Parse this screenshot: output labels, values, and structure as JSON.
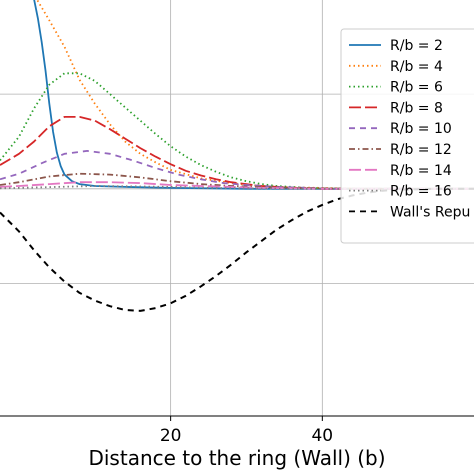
{
  "chart_data": {
    "type": "line",
    "title": "",
    "xlabel": "Distance to the ring (Wall) (b)",
    "ylabel": "",
    "xlim": [
      -2.5,
      60
    ],
    "ylim": [
      -2.4,
      2.1
    ],
    "x_ticks": [
      20,
      40
    ],
    "x_tick_labels": [
      "20",
      "40"
    ],
    "y_ticks": [
      -1,
      0,
      1,
      2
    ],
    "grid": true,
    "legend_position": "top-right",
    "series": [
      {
        "name": "R/b = 2",
        "color": "#1f77b4",
        "style": "solid",
        "x": [
          0,
          0.5,
          1,
          1.5,
          2,
          2.5,
          3,
          3.5,
          4,
          4.5,
          5,
          5.5,
          6,
          7,
          8,
          10,
          14,
          20,
          30,
          40,
          50,
          60
        ],
        "y": [
          2.3,
          2.25,
          2.2,
          2.12,
          2.0,
          1.8,
          1.55,
          1.25,
          0.9,
          0.6,
          0.38,
          0.24,
          0.15,
          0.08,
          0.05,
          0.03,
          0.02,
          0.01,
          0.0,
          0.0,
          0.0,
          0.0
        ]
      },
      {
        "name": "R/b = 4",
        "color": "#ff7f0e",
        "style": "dotted",
        "x": [
          0,
          2,
          4,
          6,
          8,
          10,
          12,
          14,
          16,
          18,
          20,
          24,
          28,
          32,
          36,
          40,
          45,
          50,
          55,
          60
        ],
        "y": [
          2.1,
          2.05,
          1.78,
          1.5,
          1.15,
          0.9,
          0.68,
          0.5,
          0.37,
          0.28,
          0.2,
          0.11,
          0.06,
          0.03,
          0.015,
          0.01,
          0.0,
          0.0,
          0.0,
          0.0
        ]
      },
      {
        "name": "R/b = 6",
        "color": "#2ca02c",
        "style": "dotted",
        "x": [
          -2.5,
          0,
          2,
          4,
          6,
          8,
          10,
          12,
          14,
          16,
          18,
          20,
          22,
          24,
          26,
          28,
          30,
          32,
          34,
          36,
          38,
          40,
          45,
          50,
          55,
          60
        ],
        "y": [
          0.3,
          0.55,
          0.85,
          1.1,
          1.22,
          1.22,
          1.14,
          1.0,
          0.86,
          0.72,
          0.58,
          0.45,
          0.34,
          0.25,
          0.18,
          0.12,
          0.08,
          0.05,
          0.03,
          0.02,
          0.01,
          0.005,
          0.0,
          0.0,
          0.0,
          0.0
        ]
      },
      {
        "name": "R/b = 8",
        "color": "#d62728",
        "style": "longdash",
        "x": [
          -2.5,
          0,
          2,
          4,
          6,
          8,
          10,
          12,
          14,
          16,
          18,
          20,
          22,
          24,
          26,
          28,
          30,
          32,
          34,
          36,
          38,
          40,
          45,
          50,
          55,
          60
        ],
        "y": [
          0.25,
          0.37,
          0.5,
          0.66,
          0.76,
          0.76,
          0.72,
          0.63,
          0.53,
          0.43,
          0.34,
          0.26,
          0.19,
          0.14,
          0.1,
          0.07,
          0.05,
          0.03,
          0.02,
          0.01,
          0.005,
          0.0,
          0.0,
          0.0,
          0.0,
          0.0
        ]
      },
      {
        "name": "R/b = 10",
        "color": "#9467bd",
        "style": "dashed",
        "x": [
          -2.5,
          0,
          3,
          6,
          9,
          12,
          15,
          18,
          21,
          24,
          27,
          30,
          34,
          38,
          42,
          46,
          50,
          55,
          60
        ],
        "y": [
          0.1,
          0.16,
          0.27,
          0.37,
          0.4,
          0.37,
          0.3,
          0.22,
          0.15,
          0.1,
          0.06,
          0.04,
          0.02,
          0.01,
          0.0,
          0.0,
          0.0,
          0.0,
          0.0
        ]
      },
      {
        "name": "R/b = 12",
        "color": "#8c564b",
        "style": "dashdot",
        "x": [
          -2.5,
          0,
          4,
          8,
          12,
          16,
          20,
          24,
          28,
          32,
          36,
          40,
          45,
          50,
          55,
          60
        ],
        "y": [
          0.04,
          0.07,
          0.13,
          0.16,
          0.15,
          0.12,
          0.08,
          0.05,
          0.03,
          0.02,
          0.01,
          0.005,
          0.0,
          0.0,
          0.0,
          0.0
        ]
      },
      {
        "name": "R/b = 14",
        "color": "#e377c2",
        "style": "longdash",
        "x": [
          -2.5,
          0,
          4,
          8,
          12,
          16,
          20,
          24,
          28,
          32,
          36,
          40,
          45,
          50,
          55,
          60
        ],
        "y": [
          0.02,
          0.03,
          0.05,
          0.07,
          0.07,
          0.06,
          0.04,
          0.03,
          0.02,
          0.01,
          0.005,
          0.0,
          0.0,
          0.0,
          0.0,
          0.0
        ]
      },
      {
        "name": "R/b = 16",
        "color": "#7f7f7f",
        "style": "dotted",
        "x": [
          -2.5,
          0,
          5,
          10,
          15,
          20,
          25,
          30,
          35,
          40,
          45,
          50,
          55,
          60
        ],
        "y": [
          0.005,
          0.01,
          0.02,
          0.03,
          0.025,
          0.02,
          0.01,
          0.005,
          0.0,
          0.0,
          0.0,
          0.0,
          0.0,
          0.0
        ]
      },
      {
        "name": "Wall's Repu",
        "color": "#000000",
        "style": "dashed",
        "x": [
          -2.5,
          0,
          2,
          4,
          6,
          8,
          10,
          12,
          14,
          16,
          18,
          20,
          22,
          24,
          26,
          28,
          30,
          32,
          34,
          36,
          38,
          40,
          42,
          44,
          46,
          48,
          50,
          55,
          60
        ],
        "y": [
          -0.25,
          -0.45,
          -0.65,
          -0.83,
          -0.98,
          -1.1,
          -1.18,
          -1.24,
          -1.28,
          -1.29,
          -1.26,
          -1.21,
          -1.13,
          -1.03,
          -0.92,
          -0.8,
          -0.67,
          -0.55,
          -0.43,
          -0.33,
          -0.24,
          -0.17,
          -0.11,
          -0.07,
          -0.04,
          -0.02,
          -0.01,
          0.0,
          0.0
        ]
      }
    ]
  }
}
